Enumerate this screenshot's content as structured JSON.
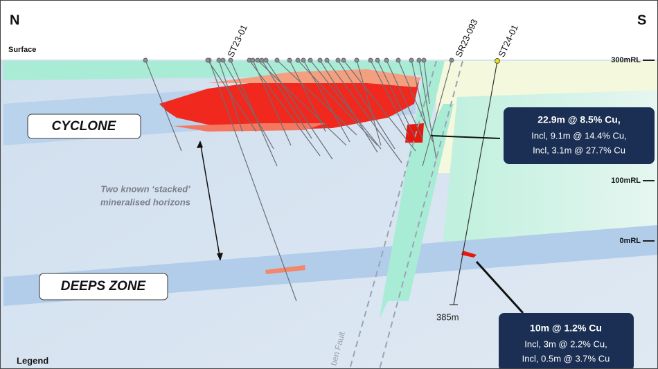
{
  "compass": {
    "north": "N",
    "south": "S"
  },
  "surface_label": "Surface",
  "drill_holes": [
    "ST23-01",
    "SR23-093",
    "ST24-01"
  ],
  "elevations": [
    "300mRL",
    "100mRL",
    "0mRL"
  ],
  "zones": {
    "upper": "CYCLONE",
    "lower": "DEEPS ZONE"
  },
  "note": [
    "Two known ‘stacked’",
    "mineralised horizons"
  ],
  "fault_label": "ben Fault",
  "hole_depth": "385m",
  "callouts": [
    {
      "title": "22.9m @ 8.5% Cu,",
      "lines": [
        "Incl, 9.1m @ 14.4% Cu,",
        "Incl, 3.1m @ 27.7% Cu"
      ]
    },
    {
      "title": "10m @ 1.2% Cu",
      "lines": [
        "Incl, 3m @ 2.2% Cu,",
        "Incl, 0.5m @ 3.7% Cu"
      ]
    }
  ],
  "legend": "Legend"
}
